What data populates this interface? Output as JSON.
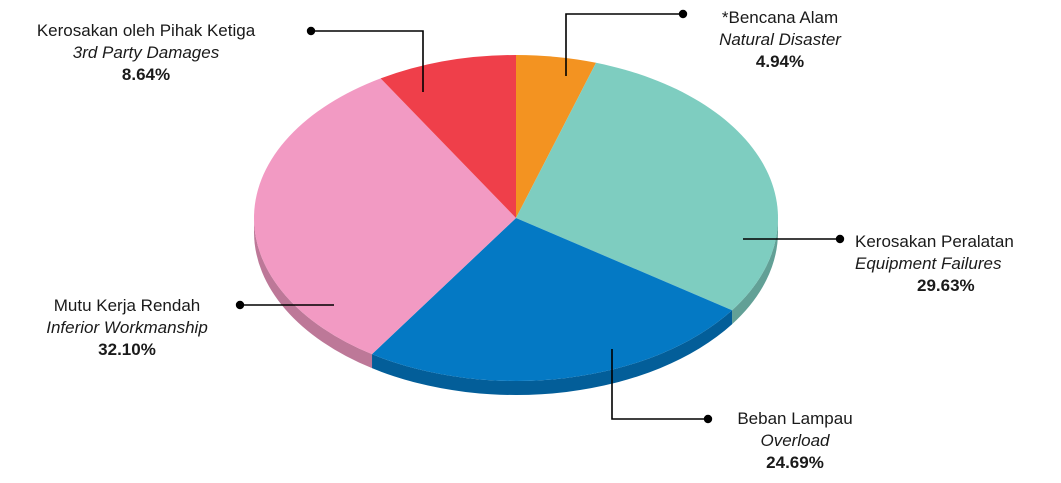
{
  "chart_data": {
    "type": "pie",
    "slices": [
      {
        "label_ms": "*Bencana Alam",
        "label_en": "Natural Disaster",
        "value": 4.94,
        "pct_label": "4.94%",
        "color": "#F39321"
      },
      {
        "label_ms": "Kerosakan Peralatan",
        "label_en": "Equipment Failures",
        "value": 29.63,
        "pct_label": "29.63%",
        "color": "#7ECDC0"
      },
      {
        "label_ms": "Beban Lampau",
        "label_en": "Overload",
        "value": 24.69,
        "pct_label": "24.69%",
        "color": "#0479C4"
      },
      {
        "label_ms": "Mutu Kerja Rendah",
        "label_en": "Inferior Workmanship",
        "value": 32.1,
        "pct_label": "32.10%",
        "color": "#F29AC3"
      },
      {
        "label_ms": "Kerosakan oleh Pihak Ketiga",
        "label_en": "3rd Party Damages",
        "value": 8.64,
        "pct_label": "8.64%",
        "color": "#EF3F4A"
      }
    ],
    "style": "3d-tilted"
  }
}
